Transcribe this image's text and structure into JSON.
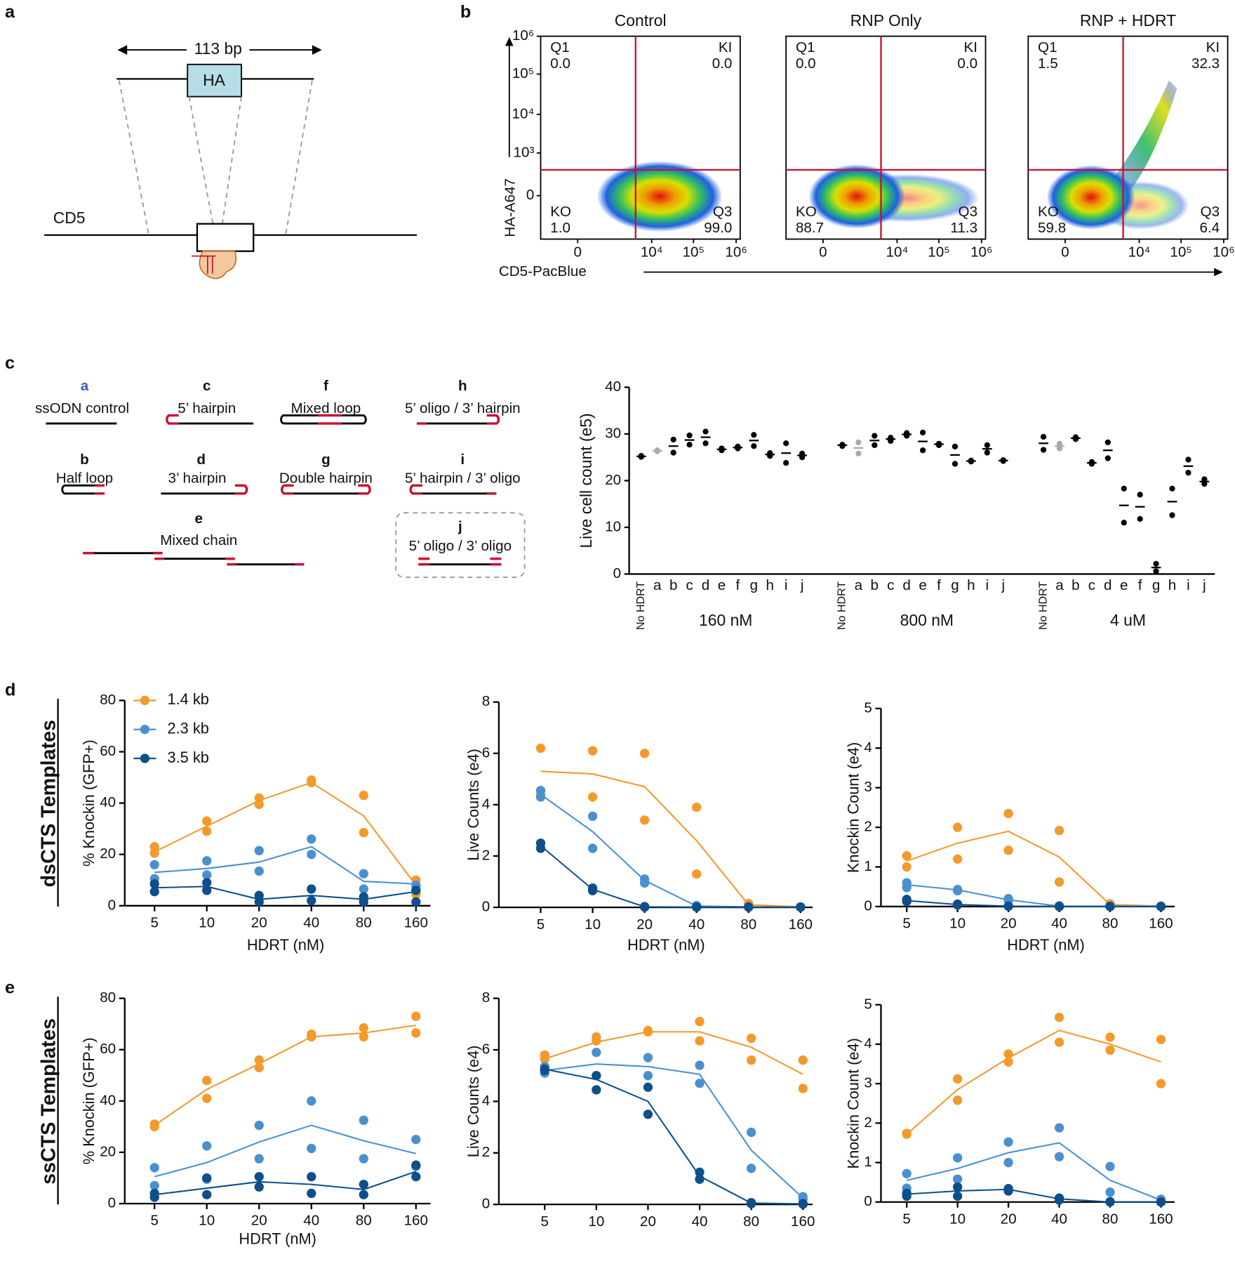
{
  "figure": {
    "panel_labels": [
      "a",
      "b",
      "c",
      "d",
      "e"
    ],
    "panel_a": {
      "length": "113 bp",
      "insert": "HA",
      "gene": "CD5"
    },
    "panel_b": {
      "y_label": "HA-A647",
      "x_label": "CD5-PacBlue",
      "y_ticks": [
        "10⁶",
        "10⁵",
        "10⁴",
        "10³",
        "0"
      ],
      "x_ticks": [
        "0",
        "10⁴",
        "10⁵",
        "10⁶"
      ],
      "plots": [
        {
          "title": "Control",
          "quadrants": [
            {
              "name": "Q1",
              "value": "0.0"
            },
            {
              "name": "KI",
              "value": "0.0"
            },
            {
              "name": "KO",
              "value": "1.0"
            },
            {
              "name": "Q3",
              "value": "99.0"
            }
          ]
        },
        {
          "title": "RNP Only",
          "quadrants": [
            {
              "name": "Q1",
              "value": "0.0"
            },
            {
              "name": "KI",
              "value": "0.0"
            },
            {
              "name": "KO",
              "value": "88.7"
            },
            {
              "name": "Q3",
              "value": "11.3"
            }
          ]
        },
        {
          "title": "RNP + HDRT",
          "quadrants": [
            {
              "name": "Q1",
              "value": "1.5"
            },
            {
              "name": "KI",
              "value": "32.3"
            },
            {
              "name": "KO",
              "value": "59.8"
            },
            {
              "name": "Q3",
              "value": "6.4"
            }
          ]
        }
      ]
    },
    "templates": [
      {
        "letter": "a",
        "name": "ssODN control"
      },
      {
        "letter": "b",
        "name": "Half loop"
      },
      {
        "letter": "c",
        "name": "5’ hairpin"
      },
      {
        "letter": "d",
        "name": "3’ hairpin"
      },
      {
        "letter": "e",
        "name": "Mixed chain"
      },
      {
        "letter": "f",
        "name": "Mixed loop"
      },
      {
        "letter": "g",
        "name": "Double hairpin"
      },
      {
        "letter": "h",
        "name": "5’ oligo / 3’ hairpin"
      },
      {
        "letter": "i",
        "name": "5’ hairpin / 3’ oligo"
      },
      {
        "letter": "j",
        "name": "5’ oligo / 3’ oligo"
      }
    ],
    "row_labels": [
      "dsCTS Templates",
      "ssCTS Templates"
    ]
  },
  "chart_data": [
    {
      "type": "strip",
      "ylabel": "Live cell count (e5)",
      "ylim": [
        0,
        40
      ],
      "yticks": [
        0,
        10,
        20,
        30,
        40
      ],
      "categories": [
        "No HDRT",
        "a",
        "b",
        "c",
        "d",
        "e",
        "f",
        "g",
        "h",
        "i",
        "j"
      ],
      "category_colors": [
        "#000000",
        "#aaaaaa",
        "#000000",
        "#000000",
        "#000000",
        "#000000",
        "#000000",
        "#000000",
        "#000000",
        "#000000",
        "#000000"
      ],
      "groups": [
        {
          "label": "160 nM",
          "replicates": [
            [
              25.3,
              26.5,
              28.8,
              29.7,
              30.5,
              26.9,
              27.3,
              29.8,
              25.9,
              28.0,
              25.8
            ],
            [
              25.1,
              26.3,
              26.0,
              27.7,
              28.0,
              26.5,
              26.9,
              27.4,
              25.3,
              23.8,
              25.0
            ]
          ],
          "means": [
            25.2,
            26.4,
            27.4,
            28.7,
            29.3,
            26.7,
            27.1,
            28.6,
            25.6,
            25.9,
            25.4
          ]
        },
        {
          "label": "800 nM",
          "replicates": [
            [
              27.7,
              28.2,
              29.6,
              29.2,
              30.2,
              30.3,
              27.9,
              27.3,
              24.3,
              27.6,
              24.4
            ],
            [
              27.4,
              25.8,
              27.6,
              28.5,
              29.6,
              26.5,
              27.6,
              23.6,
              24.1,
              26.0,
              24.2
            ]
          ],
          "means": [
            27.6,
            27.0,
            28.6,
            28.9,
            29.9,
            28.4,
            27.8,
            25.5,
            24.2,
            26.8,
            24.3
          ]
        },
        {
          "label": "4 uM",
          "replicates": [
            [
              29.4,
              27.9,
              29.3,
              24.0,
              28.2,
              18.3,
              17.0,
              2.2,
              18.3,
              24.5,
              20.3
            ],
            [
              26.6,
              26.9,
              28.9,
              23.6,
              24.8,
              11.0,
              11.8,
              0.6,
              12.6,
              21.7,
              19.3
            ]
          ],
          "means": [
            28.0,
            27.4,
            29.1,
            23.8,
            26.5,
            14.7,
            14.4,
            1.4,
            15.5,
            23.1,
            19.8
          ]
        }
      ]
    },
    {
      "type": "line",
      "ylabel": "% Knockin (GFP+)",
      "xlabel": "HDRT (nM)",
      "categories": [
        "5",
        "10",
        "20",
        "40",
        "80",
        "160"
      ],
      "ylim": [
        0,
        80
      ],
      "yticks": [
        0,
        20,
        40,
        60,
        80
      ],
      "series": [
        {
          "name": "1.4 kb",
          "color": "#f39a2b",
          "values": [
            21,
            31,
            41,
            48,
            35,
            8
          ],
          "replicates": [
            [
              23,
              33,
              42,
              49,
              43,
              10
            ],
            [
              20.5,
              29,
              39.5,
              48,
              28.5,
              4.5
            ]
          ]
        },
        {
          "name": "2.3 kb",
          "color": "#4a90d0",
          "values": [
            13,
            14.5,
            17,
            23,
            9.5,
            8.5
          ],
          "replicates": [
            [
              16,
              17.5,
              21.5,
              26,
              12.5,
              8
            ],
            [
              10.5,
              12,
              13.5,
              20,
              6.5,
              7.5
            ]
          ]
        },
        {
          "name": "3.5 kb",
          "color": "#0d4f8b",
          "values": [
            7,
            7.5,
            2.5,
            4,
            2.5,
            5.5
          ],
          "replicates": [
            [
              8.5,
              9,
              4,
              6.5,
              3.5,
              6
            ],
            [
              5.5,
              6,
              1.5,
              2,
              1.5,
              1.5
            ]
          ]
        }
      ]
    },
    {
      "type": "line",
      "ylabel": "Live Counts (e4)",
      "xlabel": "HDRT (nM)",
      "categories": [
        "5",
        "10",
        "20",
        "40",
        "80",
        "160"
      ],
      "ylim": [
        0,
        8
      ],
      "yticks": [
        0,
        2,
        4,
        6,
        8
      ],
      "series": [
        {
          "color": "#f39a2b",
          "values": [
            5.3,
            5.2,
            4.7,
            2.6,
            0.1,
            0.02
          ],
          "replicates": [
            [
              6.2,
              6.1,
              6.0,
              3.9,
              0.15,
              0.02
            ],
            [
              4.4,
              4.3,
              3.4,
              1.3,
              0.05,
              0.01
            ]
          ]
        },
        {
          "color": "#4a90d0",
          "values": [
            4.4,
            2.95,
            1.05,
            0.05,
            0.02,
            0.01
          ],
          "replicates": [
            [
              4.55,
              3.55,
              1.1,
              0.07,
              0.03,
              0.01
            ],
            [
              4.3,
              2.3,
              0.95,
              0.03,
              0.01,
              0.01
            ]
          ]
        },
        {
          "color": "#0d4f8b",
          "values": [
            2.4,
            0.7,
            0.02,
            0.01,
            0.01,
            0.01
          ],
          "replicates": [
            [
              2.5,
              0.75,
              0.03,
              0.01,
              0.01,
              0.01
            ],
            [
              2.3,
              0.65,
              0.01,
              0.01,
              0.01,
              0.01
            ]
          ]
        }
      ]
    },
    {
      "type": "line",
      "ylabel": "Knockin Count (e4)",
      "xlabel": "HDRT (nM)",
      "categories": [
        "5",
        "10",
        "20",
        "40",
        "80",
        "160"
      ],
      "ylim": [
        0,
        5
      ],
      "yticks": [
        0,
        1,
        2,
        3,
        4,
        5
      ],
      "series": [
        {
          "color": "#f39a2b",
          "values": [
            1.15,
            1.6,
            1.9,
            1.25,
            0.05,
            0.01
          ],
          "replicates": [
            [
              1.28,
              2.0,
              2.35,
              1.92,
              0.07,
              0.01
            ],
            [
              1.0,
              1.2,
              1.42,
              0.62,
              0.03,
              0.01
            ]
          ]
        },
        {
          "color": "#4a90d0",
          "values": [
            0.55,
            0.42,
            0.17,
            0.01,
            0.01,
            0.01
          ],
          "replicates": [
            [
              0.6,
              0.43,
              0.2,
              0.02,
              0.01,
              0.01
            ],
            [
              0.48,
              0.4,
              0.15,
              0.01,
              0.01,
              0.01
            ]
          ]
        },
        {
          "color": "#0d4f8b",
          "values": [
            0.15,
            0.05,
            0.01,
            0,
            0,
            0
          ],
          "replicates": [
            [
              0.18,
              0.06,
              0.01,
              0,
              0,
              0
            ],
            [
              0.13,
              0.04,
              0.01,
              0,
              0,
              0
            ]
          ]
        }
      ]
    },
    {
      "type": "line",
      "ylabel": "% Knockin (GFP+)",
      "xlabel": "HDRT (nM)",
      "categories": [
        "5",
        "10",
        "20",
        "40",
        "80",
        "160"
      ],
      "ylim": [
        0,
        80
      ],
      "yticks": [
        0,
        20,
        40,
        60,
        80
      ],
      "series": [
        {
          "color": "#f39a2b",
          "values": [
            30.5,
            44.5,
            54.5,
            65,
            66.5,
            69.5
          ],
          "replicates": [
            [
              31,
              48,
              56,
              66,
              68.5,
              73
            ],
            [
              30,
              41,
              53,
              65,
              65,
              66.5
            ]
          ]
        },
        {
          "color": "#4a90d0",
          "values": [
            10.5,
            16,
            24,
            30.5,
            24.5,
            19.5
          ],
          "replicates": [
            [
              14,
              22.5,
              30.5,
              40,
              32.5,
              25
            ],
            [
              7,
              9.5,
              17.5,
              21.5,
              17.5,
              14.5
            ]
          ]
        },
        {
          "color": "#0d4f8b",
          "values": [
            3.5,
            6,
            8.5,
            7.5,
            5.5,
            12.5
          ],
          "replicates": [
            [
              4,
              10,
              10.5,
              10.5,
              7.5,
              15
            ],
            [
              2.5,
              3.5,
              6.5,
              4,
              3.5,
              10.5
            ]
          ]
        }
      ]
    },
    {
      "type": "line",
      "ylabel": "Live Counts (e4)",
      "xlabel": "HDRT (nM)",
      "categories": [
        "5",
        "10",
        "20",
        "40",
        "80",
        "160"
      ],
      "ylim": [
        0,
        8
      ],
      "yticks": [
        0,
        2,
        4,
        6,
        8
      ],
      "series": [
        {
          "color": "#f39a2b",
          "values": [
            5.65,
            6.3,
            6.7,
            6.7,
            6.1,
            5.05
          ],
          "replicates": [
            [
              5.8,
              6.5,
              6.75,
              7.1,
              6.45,
              5.6
            ],
            [
              5.65,
              6.35,
              6.7,
              6.35,
              5.6,
              4.5
            ]
          ]
        },
        {
          "color": "#4a90d0",
          "values": [
            5.2,
            5.45,
            5.35,
            5.05,
            2.1,
            0.25
          ],
          "replicates": [
            [
              5.35,
              5.9,
              5.7,
              5.4,
              2.8,
              0.3
            ],
            [
              5.1,
              5.0,
              5.0,
              4.7,
              1.4,
              0.2
            ]
          ]
        },
        {
          "color": "#0d4f8b",
          "values": [
            5.25,
            4.85,
            4.0,
            1.1,
            0.05,
            0.02
          ],
          "replicates": [
            [
              5.25,
              5.0,
              4.55,
              1.25,
              0.07,
              0.03
            ],
            [
              5.2,
              4.45,
              3.5,
              0.98,
              0.03,
              0.01
            ]
          ]
        }
      ]
    },
    {
      "type": "line",
      "ylabel": "Knockin Count (e4)",
      "xlabel": "HDRT (nM)",
      "categories": [
        "5",
        "10",
        "20",
        "40",
        "80",
        "160"
      ],
      "ylim": [
        0,
        5
      ],
      "yticks": [
        0,
        1,
        2,
        3,
        4,
        5
      ],
      "series": [
        {
          "color": "#f39a2b",
          "values": [
            1.72,
            2.85,
            3.65,
            4.35,
            4.0,
            3.55
          ],
          "replicates": [
            [
              1.74,
              3.12,
              3.75,
              4.68,
              4.18,
              4.12
            ],
            [
              1.72,
              2.58,
              3.55,
              4.05,
              3.85,
              3.0
            ]
          ]
        },
        {
          "color": "#4a90d0",
          "values": [
            0.55,
            0.85,
            1.25,
            1.5,
            0.55,
            0.05
          ],
          "replicates": [
            [
              0.72,
              1.12,
              1.52,
              1.88,
              0.9,
              0.07
            ],
            [
              0.35,
              0.58,
              1.0,
              1.15,
              0.25,
              0.03
            ]
          ]
        },
        {
          "color": "#0d4f8b",
          "values": [
            0.2,
            0.28,
            0.32,
            0.08,
            0,
            0
          ],
          "replicates": [
            [
              0.22,
              0.38,
              0.34,
              0.1,
              0.01,
              0
            ],
            [
              0.15,
              0.15,
              0.28,
              0.05,
              0,
              0
            ]
          ]
        }
      ]
    }
  ]
}
